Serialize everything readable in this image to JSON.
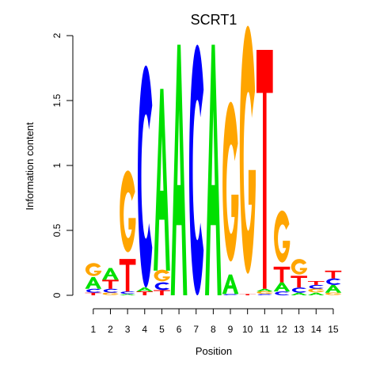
{
  "chart_data": {
    "type": "sequence-logo",
    "title": "SCRT1",
    "xlabel": "Position",
    "ylabel": "Information content",
    "ylim": [
      0,
      2
    ],
    "yticks": [
      "0",
      "0.5",
      "1",
      "1.5",
      "2"
    ],
    "positions": [
      "1",
      "2",
      "3",
      "4",
      "5",
      "6",
      "7",
      "8",
      "9",
      "10",
      "11",
      "12",
      "13",
      "14",
      "15"
    ],
    "colors": {
      "A": "#00e000",
      "C": "#0000ff",
      "G": "#ffa500",
      "T": "#ff0000"
    },
    "columns": [
      [
        [
          "T",
          0.02
        ],
        [
          "C",
          0.03
        ],
        [
          "A",
          0.09
        ],
        [
          "G",
          0.1
        ]
      ],
      [
        [
          "G",
          0.02
        ],
        [
          "C",
          0.03
        ],
        [
          "T",
          0.07
        ],
        [
          "A",
          0.09
        ]
      ],
      [
        [
          "A",
          0.01
        ],
        [
          "C",
          0.02
        ],
        [
          "T",
          0.25
        ],
        [
          "G",
          0.63
        ]
      ],
      [
        [
          "T",
          0.03
        ],
        [
          "A",
          0.03
        ],
        [
          "C",
          1.71
        ]
      ],
      [
        [
          "T",
          0.04
        ],
        [
          "C",
          0.06
        ],
        [
          "G",
          0.09
        ],
        [
          "A",
          1.4
        ]
      ],
      [
        [
          "A",
          1.93
        ]
      ],
      [
        [
          "C",
          1.93
        ]
      ],
      [
        [
          "A",
          1.93
        ]
      ],
      [
        [
          "C",
          0.01
        ],
        [
          "A",
          0.15
        ],
        [
          "G",
          1.23
        ]
      ],
      [
        [
          "T",
          0.01
        ],
        [
          "G",
          1.91
        ]
      ],
      [
        [
          "C",
          0.01
        ],
        [
          "G",
          0.02
        ],
        [
          "A",
          0.02
        ],
        [
          "T",
          1.84
        ]
      ],
      [
        [
          "C",
          0.03
        ],
        [
          "A",
          0.07
        ],
        [
          "T",
          0.12
        ],
        [
          "G",
          0.4
        ]
      ],
      [
        [
          "A",
          0.02
        ],
        [
          "C",
          0.04
        ],
        [
          "T",
          0.09
        ],
        [
          "G",
          0.12
        ]
      ],
      [
        [
          "A",
          0.02
        ],
        [
          "G",
          0.03
        ],
        [
          "C",
          0.03
        ],
        [
          "T",
          0.03
        ]
      ],
      [
        [
          "G",
          0.02
        ],
        [
          "A",
          0.06
        ],
        [
          "C",
          0.05
        ],
        [
          "T",
          0.06
        ]
      ]
    ]
  }
}
